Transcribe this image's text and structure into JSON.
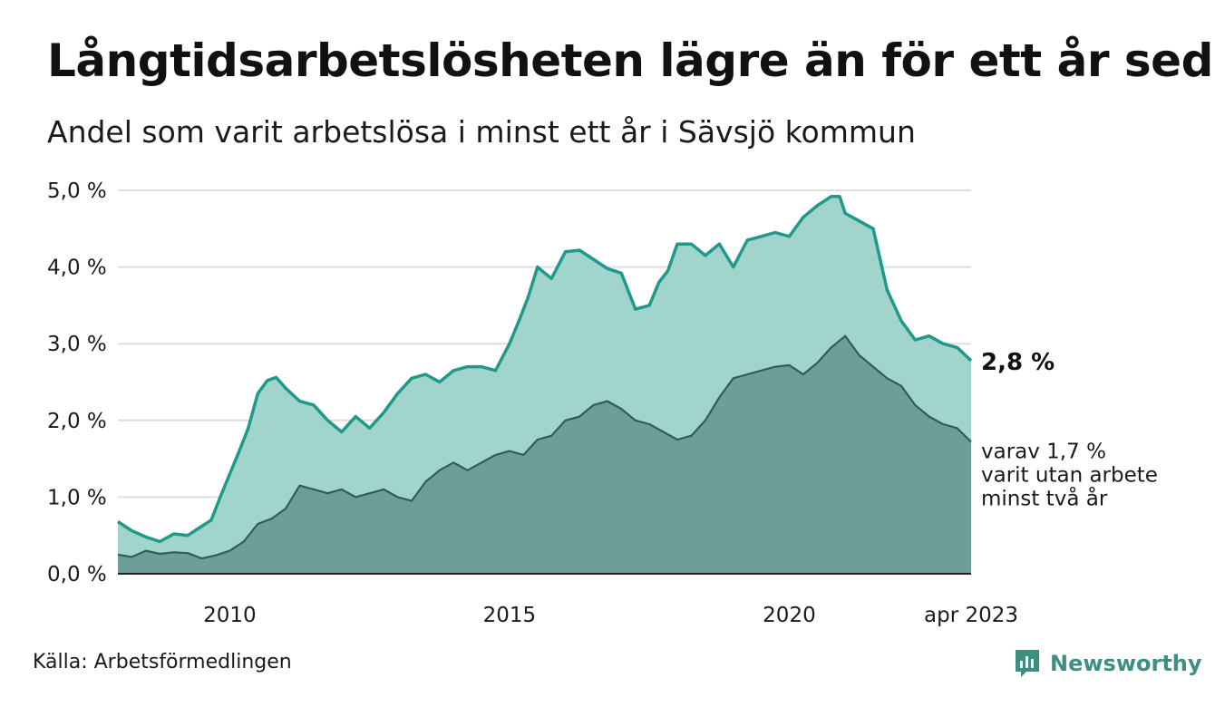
{
  "header": {
    "title": "Långtidsarbetslösheten lägre än för ett år sedan",
    "subtitle": "Andel som varit arbetslösa i minst ett år i Sävsjö kommun"
  },
  "footer": {
    "source": "Källa: Arbetsförmedlingen",
    "brand": "Newsworthy"
  },
  "colors": {
    "series1_line": "#1f9a8a",
    "series1_fill": "#a2d4ce",
    "series2_line": "#2f5e57",
    "series2_fill": "#6f9e97",
    "grid": "#dddddd",
    "brand": "#3e8f82"
  },
  "chart_data": {
    "type": "area",
    "x_start": "2008-01",
    "x_end": "2023-04",
    "xticks": [
      {
        "label": "2010",
        "x": 2010
      },
      {
        "label": "2015",
        "x": 2015
      },
      {
        "label": "2020",
        "x": 2020
      },
      {
        "label": "apr 2023",
        "x": 2023.25
      }
    ],
    "ylim": [
      0,
      5
    ],
    "yticks": [
      {
        "value": 0,
        "label": "0,0 %"
      },
      {
        "value": 1,
        "label": "1,0 %"
      },
      {
        "value": 2,
        "label": "2,0 %"
      },
      {
        "value": 3,
        "label": "3,0 %"
      },
      {
        "value": 4,
        "label": "4,0 %"
      },
      {
        "value": 5,
        "label": "5,0 %"
      }
    ],
    "grid": true,
    "end_label": "2,8 %",
    "annotation": [
      "varav 1,7 %",
      "varit utan arbete",
      "minst två år"
    ],
    "series": [
      {
        "name": "minst ett år",
        "x": [
          2008.0,
          2008.25,
          2008.5,
          2008.75,
          2009.0,
          2009.25,
          2009.5,
          2009.67,
          2009.83,
          2010.0,
          2010.17,
          2010.33,
          2010.5,
          2010.67,
          2010.83,
          2011.0,
          2011.25,
          2011.5,
          2011.75,
          2012.0,
          2012.25,
          2012.5,
          2012.75,
          2013.0,
          2013.25,
          2013.5,
          2013.75,
          2014.0,
          2014.25,
          2014.5,
          2014.75,
          2015.0,
          2015.17,
          2015.33,
          2015.5,
          2015.75,
          2016.0,
          2016.25,
          2016.5,
          2016.75,
          2017.0,
          2017.25,
          2017.5,
          2017.67,
          2017.83,
          2018.0,
          2018.25,
          2018.5,
          2018.75,
          2019.0,
          2019.25,
          2019.5,
          2019.75,
          2020.0,
          2020.25,
          2020.5,
          2020.75,
          2020.9,
          2021.0,
          2021.25,
          2021.5,
          2021.75,
          2022.0,
          2022.25,
          2022.5,
          2022.75,
          2023.0,
          2023.25
        ],
        "values": [
          0.68,
          0.56,
          0.48,
          0.42,
          0.52,
          0.5,
          0.62,
          0.7,
          1.0,
          1.3,
          1.6,
          1.9,
          2.35,
          2.52,
          2.56,
          2.42,
          2.25,
          2.2,
          2.0,
          1.85,
          2.05,
          1.9,
          2.1,
          2.35,
          2.55,
          2.6,
          2.5,
          2.65,
          2.7,
          2.7,
          2.65,
          3.0,
          3.3,
          3.6,
          4.0,
          3.85,
          4.2,
          4.22,
          4.1,
          3.98,
          3.92,
          3.45,
          3.5,
          3.8,
          3.95,
          4.3,
          4.3,
          4.15,
          4.3,
          4.0,
          4.35,
          4.4,
          4.45,
          4.4,
          4.65,
          4.8,
          4.92,
          4.92,
          4.7,
          4.6,
          4.5,
          3.7,
          3.3,
          3.05,
          3.1,
          3.0,
          2.95,
          2.78
        ]
      },
      {
        "name": "minst två år",
        "x": [
          2008.0,
          2008.25,
          2008.5,
          2008.75,
          2009.0,
          2009.25,
          2009.5,
          2009.75,
          2010.0,
          2010.25,
          2010.5,
          2010.75,
          2011.0,
          2011.25,
          2011.5,
          2011.75,
          2012.0,
          2012.25,
          2012.5,
          2012.75,
          2013.0,
          2013.25,
          2013.5,
          2013.75,
          2014.0,
          2014.25,
          2014.5,
          2014.75,
          2015.0,
          2015.25,
          2015.5,
          2015.75,
          2016.0,
          2016.25,
          2016.5,
          2016.75,
          2017.0,
          2017.25,
          2017.5,
          2017.75,
          2018.0,
          2018.25,
          2018.5,
          2018.75,
          2019.0,
          2019.25,
          2019.5,
          2019.75,
          2020.0,
          2020.25,
          2020.5,
          2020.75,
          2021.0,
          2021.25,
          2021.5,
          2021.75,
          2022.0,
          2022.25,
          2022.5,
          2022.75,
          2023.0,
          2023.25
        ],
        "values": [
          0.25,
          0.22,
          0.3,
          0.26,
          0.28,
          0.27,
          0.2,
          0.24,
          0.3,
          0.42,
          0.65,
          0.72,
          0.85,
          1.15,
          1.1,
          1.05,
          1.1,
          1.0,
          1.05,
          1.1,
          1.0,
          0.95,
          1.2,
          1.35,
          1.45,
          1.35,
          1.45,
          1.55,
          1.6,
          1.55,
          1.75,
          1.8,
          2.0,
          2.05,
          2.2,
          2.25,
          2.15,
          2.0,
          1.95,
          1.85,
          1.75,
          1.8,
          2.0,
          2.3,
          2.55,
          2.6,
          2.65,
          2.7,
          2.72,
          2.6,
          2.75,
          2.95,
          3.1,
          2.85,
          2.7,
          2.55,
          2.45,
          2.2,
          2.05,
          1.95,
          1.9,
          1.72
        ]
      }
    ]
  }
}
